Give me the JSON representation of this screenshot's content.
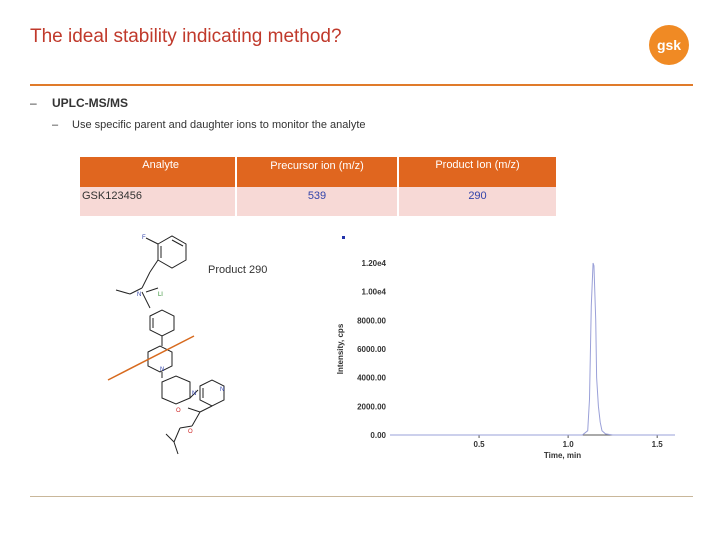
{
  "slide": {
    "title": "The ideal stability indicating method?",
    "logo_text": "gsk",
    "bullet1": "UPLC-MS/MS",
    "bullet2": "Use specific parent and daughter ions to monitor the analyte",
    "dash": "–"
  },
  "table": {
    "headers": [
      "Analyte",
      "Precursor ion (m/z)",
      "Product Ion (m/z)"
    ],
    "row": [
      "GSK123456",
      "539",
      "290"
    ]
  },
  "structure": {
    "atom_labels": [
      "F",
      "N",
      "Ll",
      "N",
      "N",
      "N",
      "O",
      "O"
    ],
    "product_label": "Product 290"
  },
  "colors": {
    "title": "#c0392b",
    "accent": "#e07b2a",
    "header_bg": "#e0661f",
    "row_bg": "#f7d9d6",
    "logo": "#f08a24",
    "trace": "#9aa0d8"
  },
  "chart_data": {
    "type": "line",
    "xlabel": "Time, min",
    "ylabel": "Intensity, cps",
    "xlim": [
      0.0,
      1.6
    ],
    "ylim": [
      0,
      12000
    ],
    "x_ticks": [
      "0.5",
      "1.0",
      "1.5"
    ],
    "x_tick_values": [
      0.5,
      1.0,
      1.5
    ],
    "y_ticks": [
      "0.00",
      "2000.00",
      "4000.00",
      "6000.00",
      "8000.00",
      "1.00e4",
      "1.20e4"
    ],
    "y_tick_values": [
      0,
      2000,
      4000,
      6000,
      8000,
      10000,
      12000
    ],
    "series": [
      {
        "x": [
          0.0,
          0.5,
          1.0,
          1.08,
          1.11,
          1.12,
          1.13,
          1.14,
          1.145,
          1.155,
          1.16,
          1.17,
          1.18,
          1.19,
          1.21,
          1.25,
          1.3,
          1.6
        ],
        "y": [
          0,
          0,
          0,
          0,
          300,
          2500,
          9000,
          12000,
          11800,
          8000,
          4000,
          2000,
          900,
          300,
          80,
          0,
          0,
          0
        ]
      }
    ]
  }
}
